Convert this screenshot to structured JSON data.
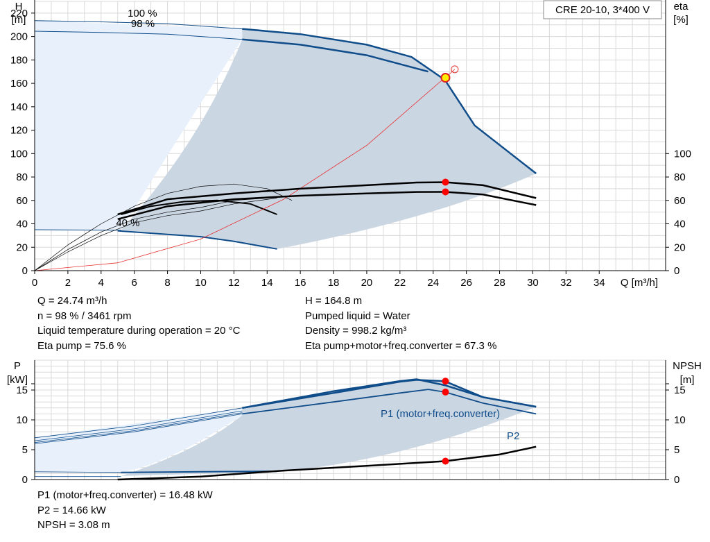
{
  "chart_data": [
    {
      "type": "line",
      "title": "CRE 20-10, 3*400 V",
      "y_left_label": [
        "H",
        "[m]"
      ],
      "y_right_label": [
        "eta",
        "[%]"
      ],
      "xlabel": "Q [m³/h]",
      "xlim": [
        0,
        38
      ],
      "x_ticks": [
        0,
        2,
        4,
        6,
        8,
        10,
        12,
        14,
        16,
        18,
        20,
        22,
        24,
        26,
        28,
        30,
        32,
        34
      ],
      "ylim": [
        0,
        230
      ],
      "y_ticks": [
        0,
        20,
        40,
        60,
        80,
        100,
        120,
        140,
        160,
        180,
        200,
        220
      ],
      "eta_axis_ticks": [
        0,
        20,
        40,
        60,
        80,
        100
      ],
      "grid": true,
      "speed_labels": [
        "100 %",
        "98 %",
        "40 %"
      ],
      "series": [
        {
          "role": "H",
          "speed": "100 %",
          "color": "#0f4c8a",
          "x": [
            0,
            4,
            8,
            12.5,
            16,
            20,
            22.7,
            24.7,
            26.5,
            30.2
          ],
          "y": [
            213.5,
            212.5,
            211,
            206.5,
            202,
            193,
            182.5,
            163,
            124,
            83
          ]
        },
        {
          "role": "H",
          "speed": "98 %",
          "color": "#0f4c8a",
          "x": [
            0,
            4,
            8,
            12.5,
            16,
            20,
            23.7
          ],
          "y": [
            204.5,
            203.5,
            202,
            197.5,
            193,
            184,
            170
          ]
        },
        {
          "role": "H",
          "speed": "40 %",
          "color": "#0f4c8a",
          "x": [
            0,
            5,
            8,
            10,
            12,
            14.6
          ],
          "y": [
            35,
            34,
            31,
            29,
            25,
            18.5
          ]
        },
        {
          "role": "system curve",
          "color": "#e83030",
          "x": [
            0,
            5,
            10,
            15,
            20,
            24.7
          ],
          "y": [
            0,
            6.7,
            27,
            61,
            107,
            164.8
          ]
        },
        {
          "role": "eta pump",
          "color": "#000000",
          "x": [
            5,
            8,
            12,
            16,
            20,
            23,
            24.7,
            27,
            30.2
          ],
          "y": [
            48,
            61,
            66,
            70,
            73,
            75.3,
            75.6,
            73,
            62
          ]
        },
        {
          "role": "eta total",
          "color": "#000000",
          "x": [
            5,
            8,
            12,
            16,
            20,
            23,
            24.7,
            27,
            30.2
          ],
          "y": [
            44,
            55,
            61,
            64,
            66,
            67.2,
            67.3,
            65,
            56
          ]
        }
      ],
      "duty_point": {
        "x": 24.74,
        "y": 164.8
      }
    },
    {
      "type": "line",
      "y_left_label": [
        "P",
        "[kW]"
      ],
      "y_right_label": [
        "NPSH",
        "[m]"
      ],
      "xlim": [
        0,
        38
      ],
      "ylim": [
        0,
        20
      ],
      "y_ticks": [
        0,
        5,
        10,
        15
      ],
      "grid": true,
      "series": [
        {
          "name": "P1 (motor+freq.converter)",
          "color": "#0f4c8a",
          "x": [
            0,
            6,
            12.5,
            18,
            22,
            23,
            24.7,
            27,
            30.2
          ],
          "y": [
            7,
            9,
            12,
            14.5,
            16.4,
            16.7,
            16.48,
            13.8,
            12.2
          ]
        },
        {
          "name": "P2",
          "color": "#0f4c8a",
          "x": [
            0,
            6,
            12.5,
            18,
            22,
            23.7,
            24.7,
            27,
            30.2
          ],
          "y": [
            6,
            8,
            11,
            13,
            14.5,
            15.1,
            14.66,
            12.8,
            11
          ]
        },
        {
          "role": "NPSH",
          "color": "#000000",
          "x": [
            5,
            10,
            15,
            20,
            24.7,
            28,
            30.2
          ],
          "y": [
            0,
            0.5,
            1.5,
            2.3,
            3.08,
            4.2,
            5.5
          ]
        }
      ],
      "operating_points": {
        "P1": 16.48,
        "P2": 14.66,
        "NPSH": 3.08
      }
    }
  ],
  "info_top": {
    "q": "Q = 24.74 m³/h",
    "n": "n = 98 % / 3461 rpm",
    "temp": "Liquid temperature during operation = 20 °C",
    "eta_pump": "Eta pump = 75.6 %",
    "h": "H = 164.8 m",
    "liquid": "Pumped liquid = Water",
    "density": "Density = 998.2 kg/m³",
    "eta_total": "Eta pump+motor+freq.converter = 67.3 %"
  },
  "info_bottom": {
    "p1": "P1 (motor+freq.converter) = 16.48 kW",
    "p2": "P2 = 14.66 kW",
    "npsh": "NPSH = 3.08 m"
  }
}
